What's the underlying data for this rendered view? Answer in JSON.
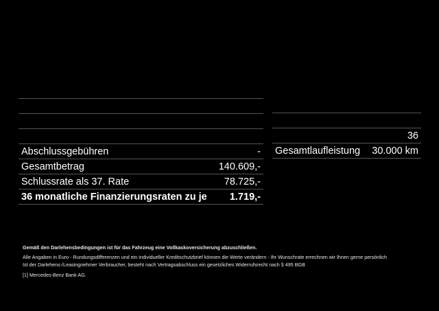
{
  "left_table": {
    "rows": [
      {
        "label": "",
        "value": ""
      },
      {
        "label": "",
        "value": ""
      },
      {
        "label": "",
        "value": ""
      },
      {
        "label": "Abschlussgebühren",
        "value": "-"
      },
      {
        "label": "Gesamtbetrag",
        "value": "140.609,-"
      },
      {
        "label": "Schlussrate als 37. Rate",
        "value": "78.725,-"
      },
      {
        "label": "36 monatliche Finanzierungsraten zu je",
        "value": "1.719,-"
      }
    ]
  },
  "right_table": {
    "rows": [
      {
        "label": "",
        "value": ""
      },
      {
        "label": "",
        "value": "36"
      },
      {
        "label": "Gesamtlaufleistung",
        "value": "30.000 km"
      }
    ]
  },
  "footnotes": {
    "insurance": "Gemäß den Darlehensbedingungen ist für das Fahrzeug eine Vollkaskoversicherung abzuschließen.",
    "disclaimer": "Alle Angaben in Euro - Rundungsdifferenzen und ein individueller Kreditschutzbrief können die Werte verändern - Ihr Wunschrate errechnen wir Ihnen gerne persönlich",
    "withdrawal": "Ist der Darlehens-/Leasingnehmer Verbraucher, besteht nach Vertragsabschluss ein gesetzliches Widerrufsrecht nach § 495 BGB",
    "lender": "[1]  Mercedes-Benz Bank AG."
  }
}
